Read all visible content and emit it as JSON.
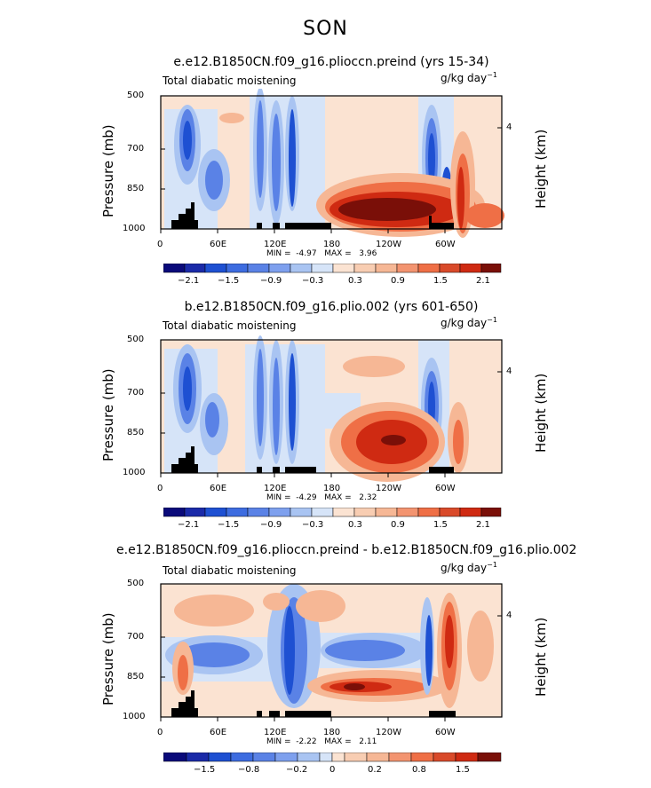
{
  "figure": {
    "season": "SON",
    "left_axis_label": "Pressure (mb)",
    "right_axis_label": "Height (km)",
    "variable": "Total diabatic moistening",
    "units_base": "g/kg day",
    "units_exp": "−1"
  },
  "chart_data": [
    {
      "type": "heatmap",
      "title": "e.e12.B1850CN.f09_g16.plioccn.preind (yrs 15-34)",
      "subtitle_left": "Total diabatic moistening",
      "subtitle_right": "g/kg day⁻¹",
      "x_ticks": [
        "0",
        "60E",
        "120E",
        "180",
        "120W",
        "60W"
      ],
      "y_ticks": [
        "500",
        "700",
        "850",
        "1000"
      ],
      "right_ticks": [
        "4"
      ],
      "ylim": [
        1000,
        500
      ],
      "min_text": "MIN =",
      "min_value": "-4.97",
      "max_text": "MAX =",
      "max_value": "3.96",
      "colorbar_labels": [
        "−2.1",
        "−1.5",
        "−0.9",
        "−0.3",
        "0.3",
        "0.9",
        "1.5",
        "2.1"
      ]
    },
    {
      "type": "heatmap",
      "title": "b.e12.B1850CN.f09_g16.plio.002 (yrs 601-650)",
      "subtitle_left": "Total diabatic moistening",
      "subtitle_right": "g/kg day⁻¹",
      "x_ticks": [
        "0",
        "60E",
        "120E",
        "180",
        "120W",
        "60W"
      ],
      "y_ticks": [
        "500",
        "700",
        "850",
        "1000"
      ],
      "right_ticks": [
        "4"
      ],
      "ylim": [
        1000,
        500
      ],
      "min_text": "MIN =",
      "min_value": "-4.29",
      "max_text": "MAX =",
      "max_value": "2.32",
      "colorbar_labels": [
        "−2.1",
        "−1.5",
        "−0.9",
        "−0.3",
        "0.3",
        "0.9",
        "1.5",
        "2.1"
      ]
    },
    {
      "type": "heatmap",
      "title": "e.e12.B1850CN.f09_g16.plioccn.preind - b.e12.B1850CN.f09_g16.plio.002",
      "subtitle_left": "Total diabatic moistening",
      "subtitle_right": "g/kg day⁻¹",
      "x_ticks": [
        "0",
        "60E",
        "120E",
        "180",
        "120W",
        "60W"
      ],
      "y_ticks": [
        "500",
        "700",
        "850",
        "1000"
      ],
      "right_ticks": [
        "4"
      ],
      "ylim": [
        1000,
        500
      ],
      "min_text": "MIN =",
      "min_value": "-2.22",
      "max_text": "MAX =",
      "max_value": "2.11",
      "colorbar_labels": [
        "−1.5",
        "−0.8",
        "−0.2",
        "0",
        "0.2",
        "0.8",
        "1.5"
      ]
    }
  ],
  "colors": {
    "dark_blue": "#0a0a7a",
    "blue": "#1e50d2",
    "mid_blue": "#5a82e6",
    "light_blue": "#a9c4f2",
    "pale_blue": "#d6e4f8",
    "pale_orange": "#fbe3d2",
    "light_orange": "#f6b795",
    "orange": "#ef6f46",
    "red": "#cf2a12",
    "dark_red": "#7a0f08",
    "land": "#000000"
  }
}
